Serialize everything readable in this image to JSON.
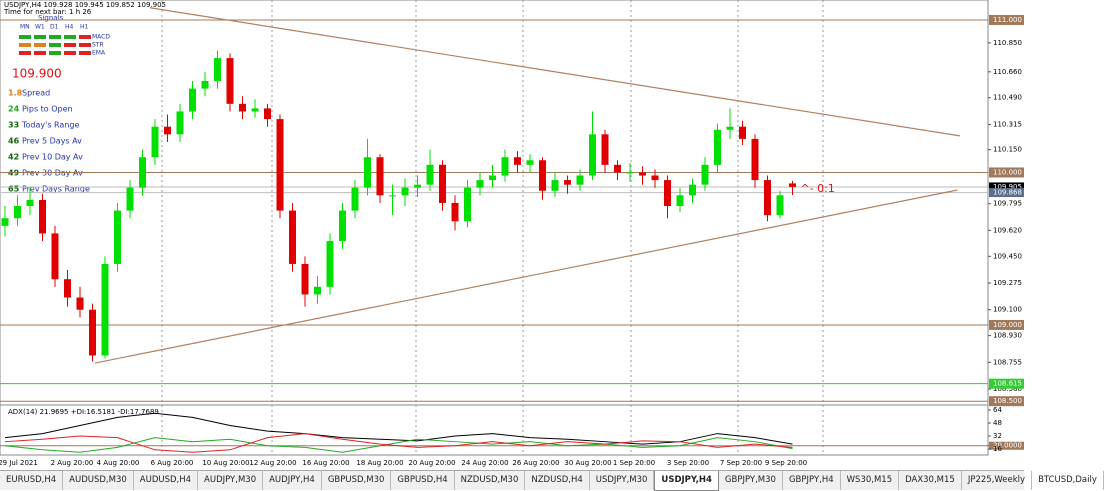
{
  "header": {
    "symbol_line": "USDJPY,H4 109.928 109.945 109.852 109.905",
    "timer": "Time for next bar: 1 h 26",
    "signals_title": "Signals",
    "timeframes": [
      "MN",
      "W1",
      "D1",
      "H4",
      "H1"
    ],
    "indicators": [
      "MACD",
      "STR",
      "EMA"
    ]
  },
  "stats": {
    "price": "109.900",
    "rows": [
      {
        "value": "1.8",
        "label": "Spread"
      },
      {
        "value": "24",
        "label": "Pips to Open"
      },
      {
        "value": "33",
        "label": "Today's Range"
      },
      {
        "value": "46",
        "label": "Prev 5 Days Av"
      },
      {
        "value": "42",
        "label": "Prev 10 Day Av"
      },
      {
        "value": "49",
        "label": "Prev 30 Day Av"
      },
      {
        "value": "65",
        "label": "Prev Days Range"
      }
    ]
  },
  "chart_data": {
    "type": "candlestick",
    "up_color": "#00e000",
    "down_color": "#e00000",
    "ylim": [
      108.475,
      111.131
    ],
    "yticks": [
      {
        "value": 110.85,
        "label": "110.850"
      },
      {
        "value": 110.66,
        "label": "110.660"
      },
      {
        "value": 110.49,
        "label": "110.490"
      },
      {
        "value": 110.315,
        "label": "110.315"
      },
      {
        "value": 110.15,
        "label": "110.150"
      },
      {
        "value": 109.795,
        "label": "109.795"
      },
      {
        "value": 109.62,
        "label": "109.620"
      },
      {
        "value": 109.45,
        "label": "109.450"
      },
      {
        "value": 109.275,
        "label": "109.275"
      },
      {
        "value": 109.1,
        "label": "109.100"
      },
      {
        "value": 108.93,
        "label": "108.930"
      },
      {
        "value": 108.755,
        "label": "108.755"
      },
      {
        "value": 108.58,
        "label": "108.580"
      }
    ],
    "levels": [
      {
        "value": 111,
        "label": "111.000",
        "color": "#a0785a"
      },
      {
        "value": 110,
        "label": "110.000",
        "color": "#a0785a"
      },
      {
        "value": 109,
        "label": "109.000",
        "color": "#a0785a"
      },
      {
        "value": 108.615,
        "label": "108.615",
        "color": "#33cc33"
      },
      {
        "value": 108.5,
        "label": "108.500",
        "color": "#a0785a"
      }
    ],
    "price_boxes": [
      {
        "value": 109.905,
        "label": "109.905",
        "color": "#000000"
      },
      {
        "value": 109.868,
        "label": "109.868",
        "color": "#5a6f8c"
      }
    ],
    "trendlines": [
      {
        "from": [
          11.6,
          111.08
        ],
        "to": [
          76.4,
          110.24
        ],
        "color": "#b08060"
      },
      {
        "from": [
          7.2,
          108.75
        ],
        "to": [
          76.2,
          109.885
        ],
        "color": "#b08060"
      }
    ],
    "annotation": "^- 0:1",
    "candles": [
      [
        109.65,
        109.78,
        109.58,
        109.7
      ],
      [
        109.7,
        109.85,
        109.65,
        109.78
      ],
      [
        109.78,
        109.9,
        109.72,
        109.82
      ],
      [
        109.82,
        109.86,
        109.55,
        109.6
      ],
      [
        109.6,
        109.65,
        109.25,
        109.3
      ],
      [
        109.3,
        109.36,
        109.12,
        109.18
      ],
      [
        109.18,
        109.25,
        109.05,
        109.1
      ],
      [
        109.1,
        109.14,
        108.76,
        108.8
      ],
      [
        108.8,
        109.45,
        108.78,
        109.4
      ],
      [
        109.4,
        109.8,
        109.35,
        109.75
      ],
      [
        109.75,
        109.95,
        109.7,
        109.9
      ],
      [
        109.9,
        110.15,
        109.85,
        110.1
      ],
      [
        110.1,
        110.35,
        110.05,
        110.3
      ],
      [
        110.3,
        110.38,
        110.2,
        110.25
      ],
      [
        110.25,
        110.45,
        110.2,
        110.4
      ],
      [
        110.4,
        110.6,
        110.35,
        110.55
      ],
      [
        110.55,
        110.66,
        110.5,
        110.6
      ],
      [
        110.6,
        110.8,
        110.55,
        110.75
      ],
      [
        110.75,
        110.78,
        110.4,
        110.45
      ],
      [
        110.45,
        110.5,
        110.35,
        110.4
      ],
      [
        110.4,
        110.48,
        110.36,
        110.42
      ],
      [
        110.42,
        110.45,
        110.3,
        110.35
      ],
      [
        110.35,
        110.38,
        109.7,
        109.75
      ],
      [
        109.75,
        109.8,
        109.35,
        109.4
      ],
      [
        109.4,
        109.45,
        109.12,
        109.2
      ],
      [
        109.2,
        109.32,
        109.14,
        109.25
      ],
      [
        109.25,
        109.6,
        109.2,
        109.55
      ],
      [
        109.55,
        109.8,
        109.5,
        109.75
      ],
      [
        109.75,
        109.95,
        109.7,
        109.9
      ],
      [
        109.9,
        110.22,
        109.85,
        110.1
      ],
      [
        110.1,
        110.12,
        109.8,
        109.85
      ],
      [
        109.85,
        109.92,
        109.72,
        109.85
      ],
      [
        109.85,
        109.96,
        109.78,
        109.9
      ],
      [
        109.9,
        109.98,
        109.84,
        109.92
      ],
      [
        109.92,
        110.15,
        109.88,
        110.05
      ],
      [
        110.05,
        110.08,
        109.75,
        109.8
      ],
      [
        109.8,
        109.85,
        109.62,
        109.68
      ],
      [
        109.68,
        109.95,
        109.64,
        109.9
      ],
      [
        109.9,
        110.0,
        109.85,
        109.95
      ],
      [
        109.95,
        110.05,
        109.9,
        109.98
      ],
      [
        109.98,
        110.15,
        109.94,
        110.1
      ],
      [
        110.1,
        110.14,
        110.0,
        110.05
      ],
      [
        110.05,
        110.12,
        110.0,
        110.08
      ],
      [
        110.08,
        110.1,
        109.82,
        109.88
      ],
      [
        109.88,
        110.0,
        109.84,
        109.95
      ],
      [
        109.95,
        109.98,
        109.86,
        109.92
      ],
      [
        109.92,
        110.02,
        109.88,
        109.98
      ],
      [
        109.98,
        110.4,
        109.95,
        110.25
      ],
      [
        110.25,
        110.28,
        110.0,
        110.05
      ],
      [
        110.05,
        110.08,
        109.95,
        110.0
      ],
      [
        110.0,
        110.06,
        109.94,
        110.0
      ],
      [
        110.0,
        110.04,
        109.92,
        109.98
      ],
      [
        109.98,
        110.02,
        109.9,
        109.95
      ],
      [
        109.95,
        109.98,
        109.7,
        109.78
      ],
      [
        109.78,
        109.9,
        109.74,
        109.85
      ],
      [
        109.85,
        109.96,
        109.8,
        109.92
      ],
      [
        109.92,
        110.1,
        109.88,
        110.05
      ],
      [
        110.05,
        110.32,
        110.0,
        110.28
      ],
      [
        110.28,
        110.42,
        110.22,
        110.3
      ],
      [
        110.3,
        110.34,
        110.18,
        110.22
      ],
      [
        110.22,
        110.25,
        109.9,
        109.95
      ],
      [
        109.95,
        109.98,
        109.68,
        109.72
      ],
      [
        109.72,
        109.88,
        109.7,
        109.85
      ],
      [
        109.928,
        109.945,
        109.852,
        109.905
      ]
    ],
    "x_labels": [
      "29 Jul 2021",
      "2 Aug 20:00",
      "4 Aug 20:00",
      "6 Aug 20:00",
      "10 Aug 20:00",
      "12 Aug 20:00",
      "16 Aug 20:00",
      "18 Aug 20:00",
      "20 Aug 20:00",
      "24 Aug 20:00",
      "26 Aug 20:00",
      "30 Aug 20:00",
      "1 Sep 20:00",
      "3 Sep 20:00",
      "7 Sep 20:00",
      "9 Sep 20:00"
    ],
    "indicator": {
      "title": "ADX(14) 21.9695 +DI:16.5181 -DI:17.7689",
      "ylim": [
        8.6,
        70.2
      ],
      "yticks": [
        64,
        48,
        32,
        {
          "value": 20,
          "label": "20.0000"
        },
        16
      ],
      "level": 20,
      "series": [
        {
          "name": "ADX",
          "color": "#000000",
          "values": [
            30,
            35,
            45,
            55,
            60,
            55,
            45,
            38,
            35,
            30,
            28,
            26,
            32,
            35,
            30,
            28,
            25,
            22,
            25,
            35,
            30,
            22
          ]
        },
        {
          "name": "+DI",
          "color": "#22aa22",
          "values": [
            20,
            15,
            12,
            18,
            30,
            25,
            28,
            20,
            18,
            12,
            20,
            28,
            25,
            22,
            25,
            20,
            22,
            18,
            20,
            30,
            25,
            16.5
          ]
        },
        {
          "name": "-DI",
          "color": "#dd2222",
          "values": [
            25,
            28,
            32,
            30,
            15,
            12,
            15,
            30,
            35,
            28,
            22,
            18,
            20,
            25,
            20,
            25,
            22,
            26,
            25,
            18,
            22,
            17.8
          ]
        }
      ]
    }
  },
  "tabs": [
    "EURUSD,H4",
    "AUDUSD,M30",
    "AUDUSD,H4",
    "AUDJPY,M30",
    "AUDJPY,H4",
    "GBPUSD,M30",
    "GBPUSD,H4",
    "NZDUSD,M30",
    "NZDUSD,H4",
    "USDJPY,M30",
    "USDJPY,H4",
    "GBPJPY,M30",
    "GBPJPY,H4",
    "WS30,M15",
    "DAX30,M15",
    "JP225,Weekly",
    "BTCUSD,Daily"
  ],
  "active_tab": 10
}
